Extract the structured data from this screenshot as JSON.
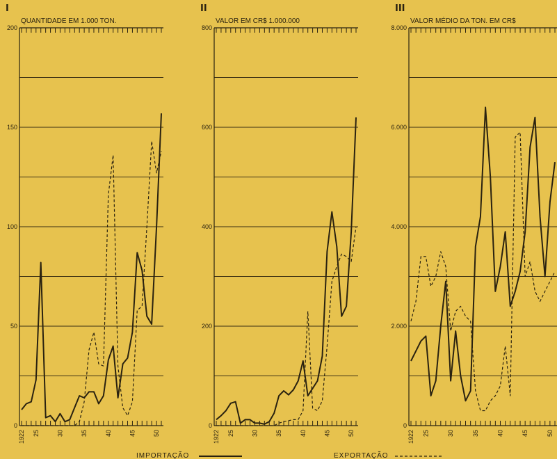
{
  "colors": {
    "background": "#e7c24e",
    "ink": "#2a2210",
    "grid": "#3a2e12"
  },
  "legend": {
    "importacao": "IMPORTAÇÃO",
    "exportacao": "EXPORTAÇÃO"
  },
  "chart_data": [
    {
      "panel": "I",
      "type": "line",
      "title": "QUANTIDADE EM 1.000 TON.",
      "ylim": [
        0,
        200
      ],
      "yticks": [
        0,
        50,
        100,
        150,
        200
      ],
      "ytick_labels": [
        "0",
        "50",
        "100",
        "150",
        "200"
      ],
      "xlim": [
        1922,
        1951
      ],
      "xticks": [
        1922,
        1925,
        1930,
        1935,
        1940,
        1945,
        1950
      ],
      "xtick_labels": [
        "1922",
        "25",
        "30",
        "35",
        "40",
        "45",
        "50"
      ],
      "series": [
        {
          "name": "IMPORTAÇÃO",
          "style": "solid",
          "x": [
            1922,
            1923,
            1924,
            1925,
            1926,
            1927,
            1928,
            1929,
            1930,
            1931,
            1932,
            1933,
            1934,
            1935,
            1936,
            1937,
            1938,
            1939,
            1940,
            1941,
            1942,
            1943,
            1944,
            1945,
            1946,
            1947,
            1948,
            1949,
            1950,
            1951
          ],
          "values": [
            8,
            11,
            12,
            23,
            82,
            4,
            5,
            2,
            6,
            2,
            3,
            9,
            15,
            14,
            17,
            17,
            11,
            15,
            33,
            40,
            14,
            31,
            34,
            47,
            87,
            78,
            55,
            51,
            100,
            157
          ]
        },
        {
          "name": "EXPORTAÇÃO",
          "style": "dashed",
          "x": [
            1922,
            1923,
            1924,
            1925,
            1926,
            1927,
            1928,
            1929,
            1930,
            1931,
            1932,
            1933,
            1934,
            1935,
            1936,
            1937,
            1938,
            1939,
            1940,
            1941,
            1942,
            1943,
            1944,
            1945,
            1946,
            1947,
            1948,
            1949,
            1950,
            1951
          ],
          "values": [
            0,
            0,
            0,
            0,
            0,
            0,
            0,
            0,
            0,
            0,
            0,
            0,
            2,
            12,
            38,
            47,
            31,
            30,
            116,
            136,
            30,
            9,
            5,
            12,
            58,
            60,
            100,
            143,
            127,
            138
          ]
        }
      ]
    },
    {
      "panel": "II",
      "type": "line",
      "title": "VALOR EM CR$ 1.000.000",
      "ylim": [
        0,
        800
      ],
      "yticks": [
        0,
        200,
        400,
        600,
        800
      ],
      "ytick_labels": [
        "0",
        "200",
        "400",
        "600",
        "800"
      ],
      "xlim": [
        1922,
        1951
      ],
      "xticks": [
        1922,
        1925,
        1930,
        1935,
        1940,
        1945,
        1950
      ],
      "xtick_labels": [
        "1922",
        "25",
        "30",
        "35",
        "40",
        "45",
        "50"
      ],
      "series": [
        {
          "name": "IMPORTAÇÃO",
          "style": "solid",
          "x": [
            1922,
            1923,
            1924,
            1925,
            1926,
            1927,
            1928,
            1929,
            1930,
            1931,
            1932,
            1933,
            1934,
            1935,
            1936,
            1937,
            1938,
            1939,
            1940,
            1941,
            1942,
            1943,
            1944,
            1945,
            1946,
            1947,
            1948,
            1949,
            1950,
            1951
          ],
          "values": [
            12,
            20,
            30,
            45,
            48,
            5,
            12,
            12,
            5,
            5,
            3,
            8,
            25,
            60,
            70,
            62,
            72,
            90,
            130,
            60,
            75,
            90,
            140,
            350,
            430,
            360,
            220,
            240,
            390,
            620
          ]
        },
        {
          "name": "EXPORTAÇÃO",
          "style": "dashed",
          "x": [
            1922,
            1923,
            1924,
            1925,
            1926,
            1927,
            1928,
            1929,
            1930,
            1931,
            1932,
            1933,
            1934,
            1935,
            1936,
            1937,
            1938,
            1939,
            1940,
            1941,
            1942,
            1943,
            1944,
            1945,
            1946,
            1947,
            1948,
            1949,
            1950,
            1951
          ],
          "values": [
            0,
            0,
            0,
            0,
            0,
            0,
            0,
            0,
            0,
            0,
            0,
            0,
            0,
            5,
            8,
            10,
            12,
            12,
            30,
            230,
            35,
            30,
            50,
            160,
            290,
            320,
            345,
            340,
            330,
            400
          ]
        }
      ]
    },
    {
      "panel": "III",
      "type": "line",
      "title": "VALOR MÉDIO DA TON. EM CR$",
      "ylim": [
        0,
        8000
      ],
      "yticks": [
        0,
        2000,
        4000,
        6000,
        8000
      ],
      "ytick_labels": [
        "0",
        "2.000",
        "4.000",
        "6.000",
        "8.000"
      ],
      "xlim": [
        1922,
        1951
      ],
      "xticks": [
        1922,
        1925,
        1930,
        1935,
        1940,
        1945,
        1950
      ],
      "xtick_labels": [
        "1922",
        "25",
        "30",
        "35",
        "40",
        "45",
        "50"
      ],
      "series": [
        {
          "name": "IMPORTAÇÃO",
          "style": "solid",
          "x": [
            1922,
            1923,
            1924,
            1925,
            1926,
            1927,
            1928,
            1929,
            1930,
            1931,
            1932,
            1933,
            1934,
            1935,
            1936,
            1937,
            1938,
            1939,
            1940,
            1941,
            1942,
            1943,
            1944,
            1945,
            1946,
            1947,
            1948,
            1949,
            1950,
            1951
          ],
          "values": [
            1300,
            1500,
            1700,
            1800,
            600,
            900,
            2000,
            2900,
            900,
            1900,
            1000,
            500,
            700,
            3600,
            4200,
            6400,
            5000,
            2700,
            3200,
            3900,
            2400,
            2700,
            3100,
            3900,
            5600,
            6200,
            4200,
            3000,
            4500,
            5300
          ]
        },
        {
          "name": "EXPORTAÇÃO",
          "style": "dashed",
          "x": [
            1922,
            1923,
            1924,
            1925,
            1926,
            1927,
            1928,
            1929,
            1930,
            1931,
            1932,
            1933,
            1934,
            1935,
            1936,
            1937,
            1938,
            1939,
            1940,
            1941,
            1942,
            1943,
            1944,
            1945,
            1946,
            1947,
            1948,
            1949,
            1950,
            1951
          ],
          "values": [
            2100,
            2500,
            3400,
            3400,
            2800,
            3000,
            3500,
            3200,
            1900,
            2300,
            2400,
            2200,
            2100,
            700,
            300,
            300,
            500,
            600,
            800,
            1600,
            600,
            5800,
            5900,
            3000,
            3300,
            2700,
            2500,
            2700,
            2900,
            3100
          ]
        }
      ]
    }
  ]
}
